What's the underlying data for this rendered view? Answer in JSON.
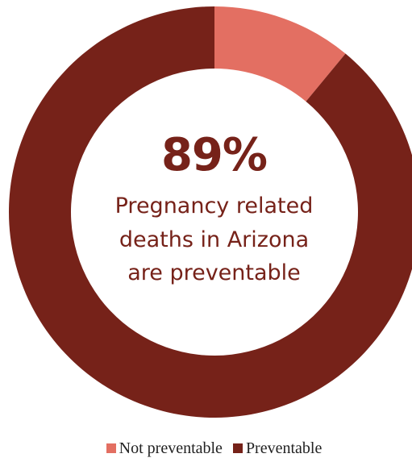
{
  "chart_data": {
    "type": "pie",
    "categories": [
      "Not preventable",
      "Preventable"
    ],
    "values": [
      11,
      89
    ],
    "colors": [
      "#e36f62",
      "#762219"
    ],
    "legend_position": "bottom",
    "center_value": "89%",
    "center_caption": [
      "Pregnancy related",
      "deaths in Arizona",
      "are preventable"
    ]
  }
}
